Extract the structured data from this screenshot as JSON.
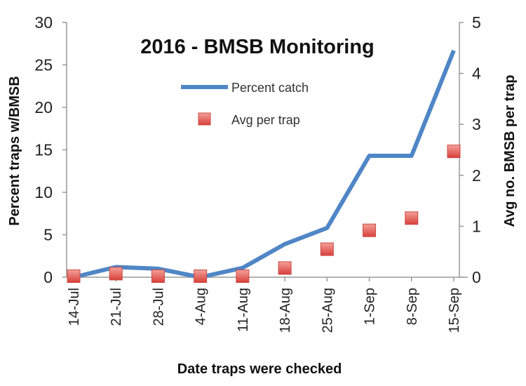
{
  "chart_data": {
    "type": "line",
    "title": "2016 - BMSB Monitoring",
    "xlabel": "Date traps were checked",
    "ylabel": "Percent traps w/BMSB",
    "y2label": "Avg no. BMSB per trap",
    "categories": [
      "14-Jul",
      "21-Jul",
      "28-Jul",
      "4-Aug",
      "11-Aug",
      "18-Aug",
      "25-Aug",
      "1-Sep",
      "8-Sep",
      "15-Sep"
    ],
    "ylim": [
      0,
      30
    ],
    "yticks": [
      0,
      5,
      10,
      15,
      20,
      25,
      30
    ],
    "y2lim": [
      0,
      5
    ],
    "y2ticks": [
      0,
      1,
      2,
      3,
      4,
      5
    ],
    "grid": false,
    "legend_position": "top-center",
    "series": [
      {
        "name": "Percent catch",
        "type": "line",
        "axis": "left",
        "color": "#4F86C6",
        "values": [
          0,
          1.2,
          1.0,
          0,
          1.1,
          3.9,
          5.8,
          14.3,
          14.3,
          26.7
        ]
      },
      {
        "name": "Avg per trap",
        "type": "scatter",
        "marker": "square",
        "axis": "right",
        "color": "#E8605A",
        "values": [
          0.02,
          0.07,
          0.02,
          0.02,
          0.02,
          0.18,
          0.55,
          0.92,
          1.16,
          2.47
        ]
      }
    ]
  }
}
